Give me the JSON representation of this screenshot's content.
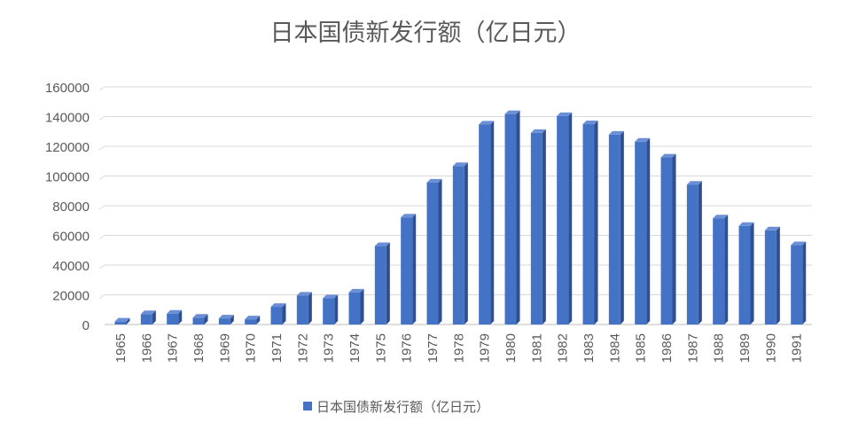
{
  "chart_data": {
    "type": "bar",
    "title": "日本国债新发行额（亿日元）",
    "categories": [
      "1965",
      "1966",
      "1967",
      "1968",
      "1969",
      "1970",
      "1971",
      "1972",
      "1973",
      "1974",
      "1975",
      "1976",
      "1977",
      "1978",
      "1979",
      "1980",
      "1981",
      "1982",
      "1983",
      "1984",
      "1985",
      "1986",
      "1987",
      "1988",
      "1989",
      "1990",
      "1991"
    ],
    "series": [
      {
        "name": "日本国债新发行额（亿日元）",
        "values": [
          2000,
          7000,
          7300,
          4600,
          4100,
          3500,
          11900,
          19500,
          17700,
          21600,
          52800,
          72100,
          95600,
          106700,
          134700,
          141700,
          128999,
          140400,
          134900,
          127800,
          123100,
          112500,
          94200,
          71500,
          66400,
          63400,
          53400
        ]
      }
    ],
    "ylim": [
      0,
      160000
    ],
    "yticks": [
      0,
      20000,
      40000,
      60000,
      80000,
      100000,
      120000,
      140000,
      160000
    ],
    "grid": true,
    "legend_position": "bottom",
    "colors": {
      "bar_front": "#4472C4",
      "bar_side": "#2F4F8F",
      "bar_top": "#6B8FD6",
      "grid": "#D9D9D9",
      "text": "#595959"
    }
  }
}
